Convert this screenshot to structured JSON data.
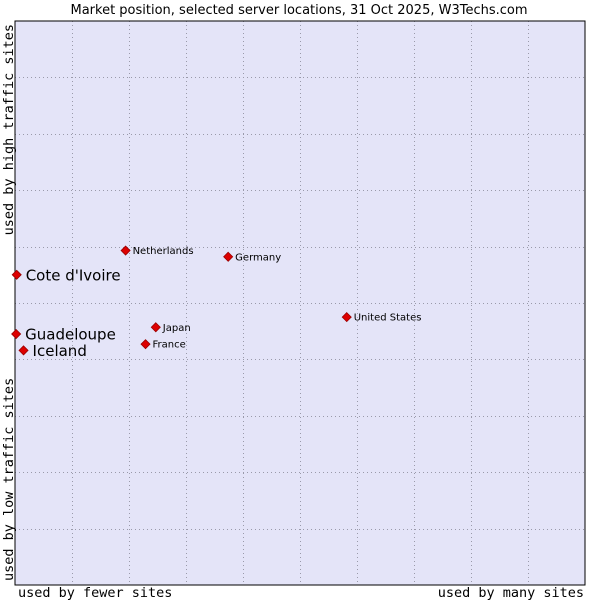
{
  "chart_data": {
    "type": "scatter",
    "title": "Market position, selected server locations, 31 Oct 2025, W3Techs.com",
    "xlabel_left": "used by fewer sites",
    "xlabel_right": "used by many sites",
    "ylabel_bottom": "used by low traffic sites",
    "ylabel_top": "used by high traffic sites",
    "xlim": [
      0,
      10
    ],
    "ylim": [
      0,
      10
    ],
    "grid": true,
    "colors": {
      "background": "#e4e4f8",
      "grid": "#9a9aaa",
      "point": "#dd0000",
      "point_edge": "#990000",
      "frame": "#000000"
    },
    "points": [
      {
        "name": "Netherlands",
        "x": 1.94,
        "y": 5.93,
        "emphasis": false
      },
      {
        "name": "Germany",
        "x": 3.74,
        "y": 5.82,
        "emphasis": false
      },
      {
        "name": "Cote d'Ivoire",
        "x": 0.03,
        "y": 5.5,
        "emphasis": true
      },
      {
        "name": "United States",
        "x": 5.82,
        "y": 4.75,
        "emphasis": false
      },
      {
        "name": "Japan",
        "x": 2.47,
        "y": 4.57,
        "emphasis": false
      },
      {
        "name": "Guadeloupe",
        "x": 0.02,
        "y": 4.45,
        "emphasis": true
      },
      {
        "name": "France",
        "x": 2.29,
        "y": 4.27,
        "emphasis": false
      },
      {
        "name": "Iceland",
        "x": 0.15,
        "y": 4.16,
        "emphasis": true
      }
    ]
  }
}
